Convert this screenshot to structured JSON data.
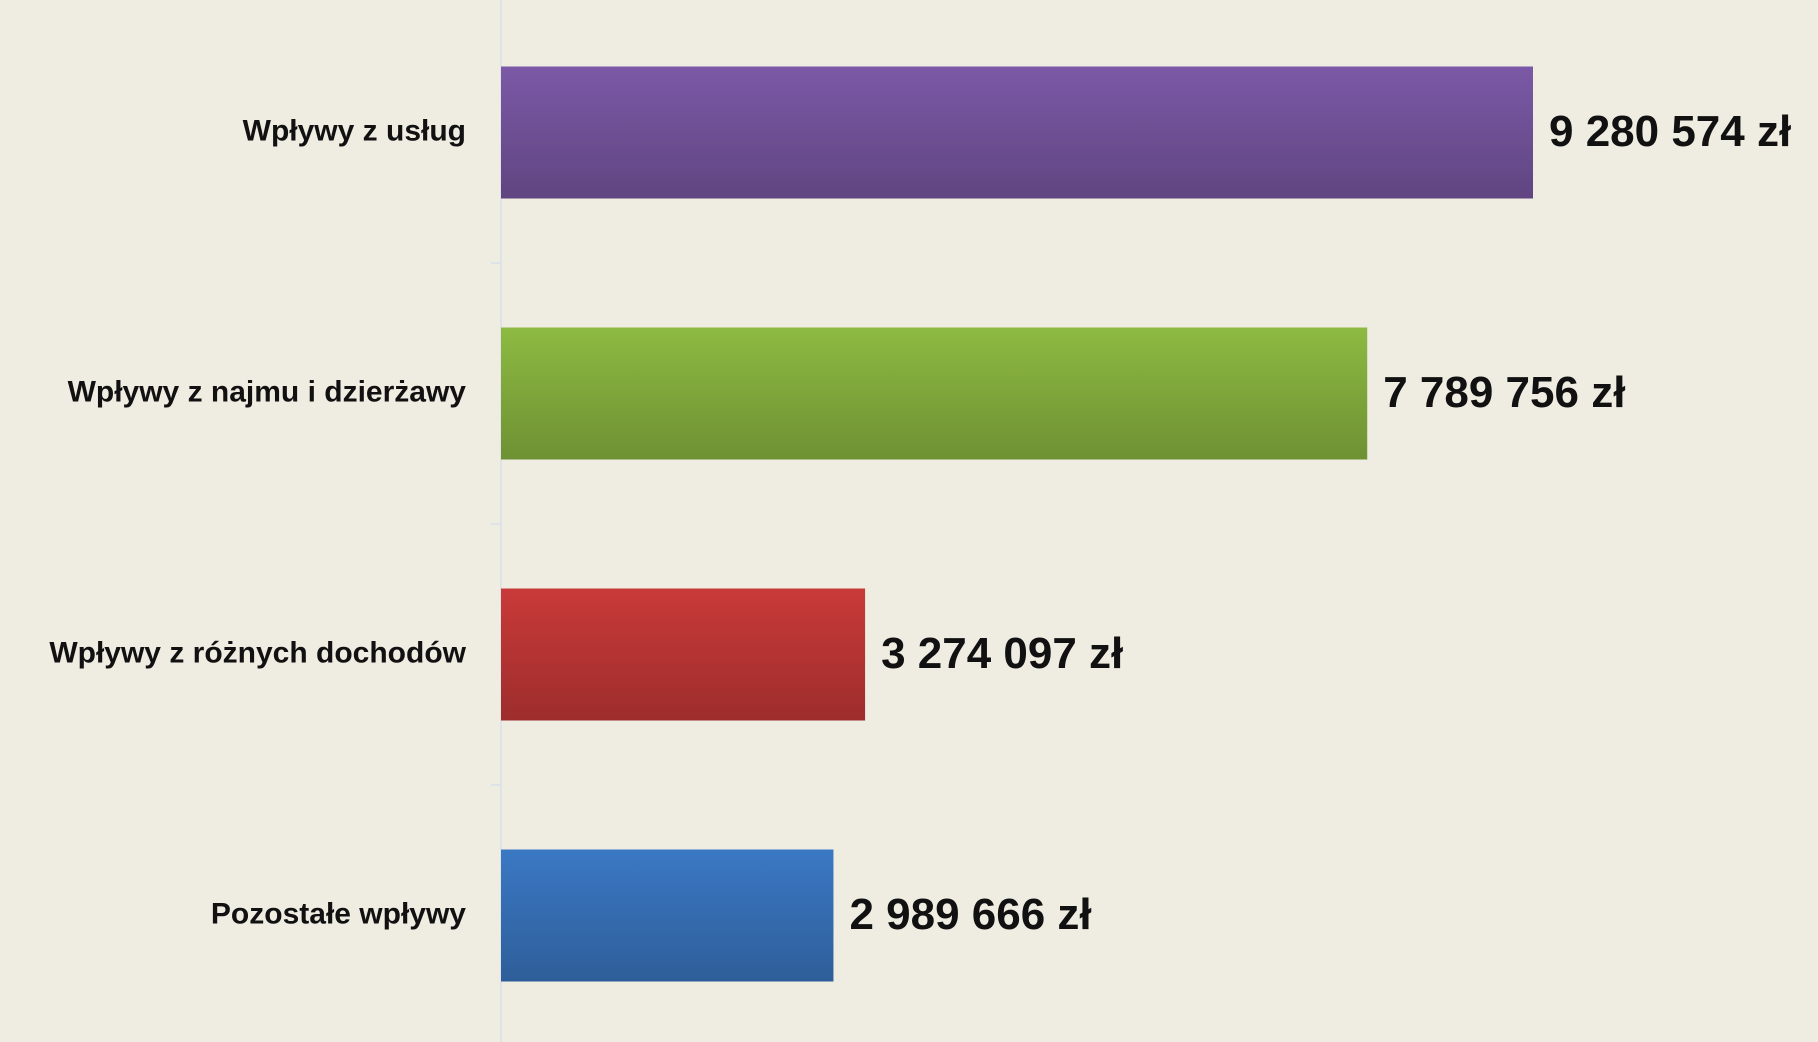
{
  "chart_data": {
    "type": "bar",
    "orientation": "horizontal",
    "categories": [
      "Wpływy z usług",
      "Wpływy z najmu i dzierżawy",
      "Wpływy z różnych dochodów",
      "Pozostałe wpływy"
    ],
    "values": [
      9280574,
      7789756,
      3274097,
      2989666
    ],
    "value_labels": [
      "9 280 574 zł",
      "7 789 756 zł",
      "3 274 097 zł",
      "2 989 666 zł"
    ],
    "colors": [
      "#7b59a6",
      "#8dba42",
      "#c93a39",
      "#3b78c4"
    ]
  }
}
